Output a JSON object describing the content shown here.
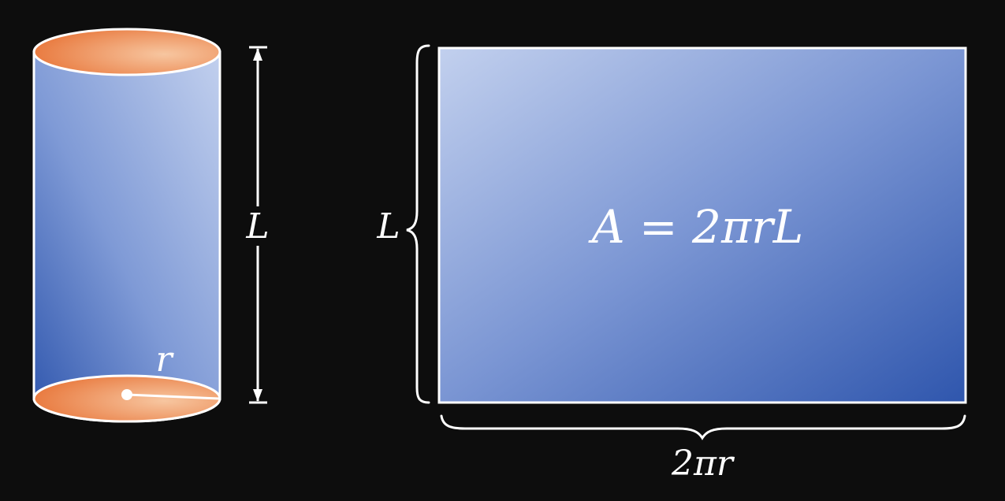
{
  "cylinder": {
    "radius_label": "r",
    "height_label": "L"
  },
  "unrolled": {
    "height_label": "L",
    "width_label": "2πr",
    "area_formula": "A = 2πrL"
  },
  "colors": {
    "background": "#0d0d0d",
    "surface_light": "#c2d0ee",
    "surface_dark": "#2f56ad",
    "end_cap_light": "#f7c6a0",
    "end_cap_dark": "#e8763a",
    "stroke": "#ffffff"
  }
}
